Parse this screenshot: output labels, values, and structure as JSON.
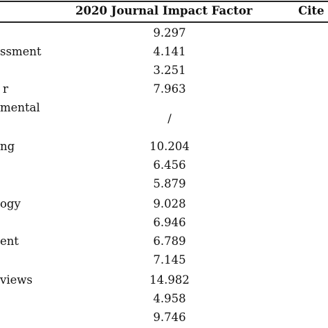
{
  "table": {
    "headers": {
      "impact_factor": "2020 Journal Impact Factor",
      "cite": "Cite"
    },
    "rows": [
      {
        "label": "",
        "value": "9.297"
      },
      {
        "label": "ssment",
        "value": "4.141"
      },
      {
        "label": "",
        "value": "3.251"
      },
      {
        "label": "r",
        "value": "7.963"
      },
      {
        "label": "mental",
        "value": ""
      },
      {
        "label": "",
        "value": "/"
      },
      {
        "label": "ng",
        "value": "10.204"
      },
      {
        "label": "",
        "value": "6.456"
      },
      {
        "label": "",
        "value": "5.879"
      },
      {
        "label": "ogy",
        "value": "9.028"
      },
      {
        "label": "",
        "value": "6.946"
      },
      {
        "label": "ent",
        "value": "6.789"
      },
      {
        "label": "",
        "value": "7.145"
      },
      {
        "label": "views",
        "value": "14.982"
      },
      {
        "label": "",
        "value": "4.958"
      },
      {
        "label": "",
        "value": "9.746"
      }
    ]
  }
}
